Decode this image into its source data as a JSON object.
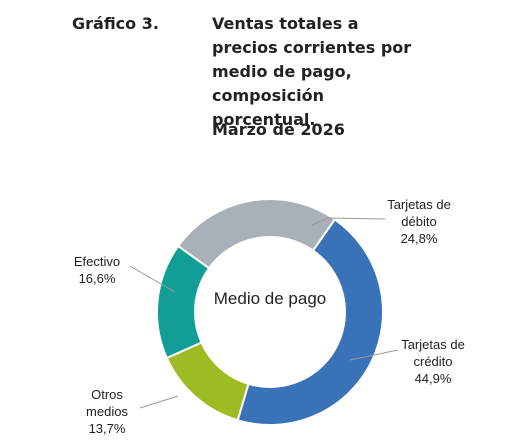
{
  "chart_data": {
    "type": "donut",
    "label": "Gráfico 3.",
    "title": "Ventas totales a precios corrientes por medio de pago, composición porcentual.",
    "subtitle": "Marzo de 2026",
    "center_label": "Medio de pago",
    "categories": [
      "Tarjetas de débito",
      "Tarjetas de crédito",
      "Otros medios",
      "Efectivo"
    ],
    "values": [
      24.8,
      44.9,
      13.7,
      16.6
    ],
    "value_labels": [
      "24,8%",
      "44,9%",
      "13,7%",
      "16,6%"
    ],
    "colors": [
      "#a9b0b8",
      "#3a72b8",
      "#9dbb22",
      "#129e96"
    ]
  }
}
